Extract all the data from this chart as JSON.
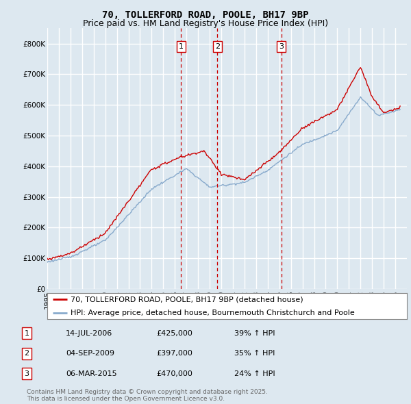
{
  "title": "70, TOLLERFORD ROAD, POOLE, BH17 9BP",
  "subtitle": "Price paid vs. HM Land Registry's House Price Index (HPI)",
  "ylim": [
    0,
    850000
  ],
  "yticks": [
    0,
    100000,
    200000,
    300000,
    400000,
    500000,
    600000,
    700000,
    800000
  ],
  "ytick_labels": [
    "£0",
    "£100K",
    "£200K",
    "£300K",
    "£400K",
    "£500K",
    "£600K",
    "£700K",
    "£800K"
  ],
  "background_color": "#dde8f0",
  "plot_bg_color": "#dde8f0",
  "grid_color": "#ffffff",
  "sale_color": "#cc0000",
  "hpi_color": "#88aacc",
  "sale_label": "70, TOLLERFORD ROAD, POOLE, BH17 9BP (detached house)",
  "hpi_label": "HPI: Average price, detached house, Bournemouth Christchurch and Poole",
  "transactions": [
    {
      "num": 1,
      "date": "14-JUL-2006",
      "price": 425000,
      "pct": "39%",
      "date_x": 2006.54
    },
    {
      "num": 2,
      "date": "04-SEP-2009",
      "price": 397000,
      "pct": "35%",
      "date_x": 2009.67
    },
    {
      "num": 3,
      "date": "06-MAR-2015",
      "price": 470000,
      "pct": "24%",
      "date_x": 2015.18
    }
  ],
  "footer": "Contains HM Land Registry data © Crown copyright and database right 2025.\nThis data is licensed under the Open Government Licence v3.0.",
  "title_fontsize": 10,
  "subtitle_fontsize": 9,
  "tick_fontsize": 7.5,
  "legend_fontsize": 8,
  "footer_fontsize": 6.5,
  "xlim": [
    1995,
    2026
  ]
}
